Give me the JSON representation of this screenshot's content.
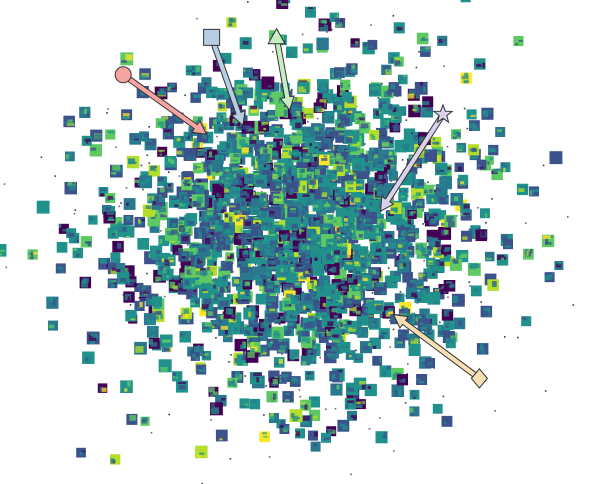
{
  "chart_data": {
    "type": "scatter",
    "title": "",
    "xlabel": "",
    "ylabel": "",
    "xlim": [
      -1.0,
      1.0
    ],
    "ylim": [
      -1.0,
      1.0
    ],
    "grid": false,
    "axes_visible": false,
    "thumbnail_colormap": [
      "#440154",
      "#3b528b",
      "#21918c",
      "#2a788e",
      "#5ec962",
      "#b5de2b",
      "#fde725"
    ],
    "cluster": {
      "center": [
        0.0,
        0.05
      ],
      "spread": [
        0.34,
        0.36
      ],
      "thumbnail_count": 1400,
      "dust_count": 420
    },
    "outliers": [
      [
        -0.6,
        0.48
      ],
      [
        -0.53,
        0.41
      ],
      [
        -0.82,
        0.46
      ],
      [
        -0.73,
        0.2
      ],
      [
        -0.88,
        0.04
      ],
      [
        -0.92,
        -0.12
      ],
      [
        -0.95,
        -0.38
      ],
      [
        -0.66,
        0.1
      ],
      [
        -0.71,
        -0.07
      ],
      [
        0.77,
        0.5
      ],
      [
        0.79,
        0.34
      ],
      [
        0.66,
        0.58
      ],
      [
        0.6,
        0.49
      ],
      [
        0.9,
        0.23
      ],
      [
        0.96,
        -0.16
      ],
      [
        0.8,
        -0.01
      ],
      [
        0.87,
        -0.36
      ],
      [
        0.5,
        -0.55
      ],
      [
        0.58,
        -0.46
      ],
      [
        0.44,
        -0.77
      ],
      [
        0.2,
        -0.79
      ],
      [
        0.12,
        -0.86
      ],
      [
        -0.38,
        -0.58
      ],
      [
        -0.26,
        -0.64
      ],
      [
        -0.1,
        -0.8
      ],
      [
        0.06,
        -0.93
      ],
      [
        -0.55,
        -0.27
      ],
      [
        -0.42,
        0.78
      ],
      [
        -0.1,
        0.94
      ],
      [
        0.03,
        0.88
      ],
      [
        0.38,
        0.82
      ],
      [
        0.18,
        0.66
      ],
      [
        -0.2,
        0.77
      ]
    ],
    "tail": [
      [
        -0.06,
        -0.85
      ],
      [
        0.0,
        -0.87
      ],
      [
        0.05,
        -0.88
      ],
      [
        0.1,
        -0.89
      ]
    ],
    "markers": [
      {
        "shape": "circle",
        "fill": "#f7a3a0",
        "tip": [
          -0.36,
          0.49
        ],
        "tail": [
          -0.68,
          0.76
        ]
      },
      {
        "shape": "square",
        "fill": "#b7cde4",
        "tip": [
          -0.22,
          0.53
        ],
        "tail": [
          -0.34,
          0.93
        ]
      },
      {
        "shape": "triangle",
        "fill": "#c6ecc3",
        "tip": [
          -0.04,
          0.6
        ],
        "tail": [
          -0.09,
          0.93
        ]
      },
      {
        "shape": "star",
        "fill": "#d9d2ec",
        "tip": [
          0.31,
          0.14
        ],
        "tail": [
          0.55,
          0.58
        ]
      },
      {
        "shape": "diamond",
        "fill": "#f7dfb4",
        "tip": [
          0.36,
          -0.33
        ],
        "tail": [
          0.69,
          -0.62
        ]
      }
    ]
  }
}
